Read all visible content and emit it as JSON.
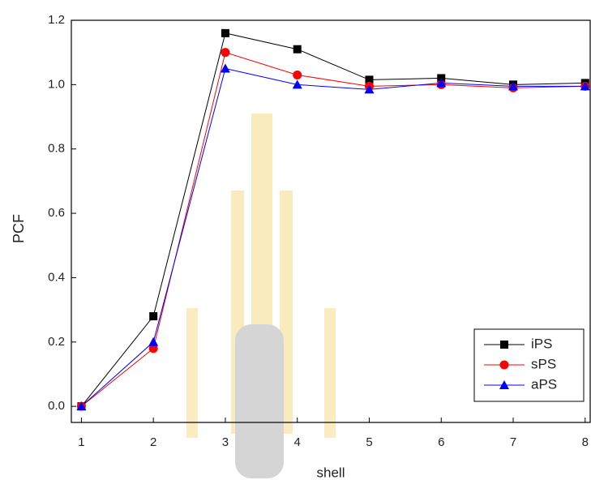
{
  "chart_data": {
    "type": "line",
    "x_label": "shell",
    "y_label": "PCF",
    "x": [
      1,
      2,
      3,
      4,
      5,
      6,
      7,
      8
    ],
    "series": [
      {
        "name": "iPS",
        "color": "#000000",
        "marker": "square",
        "values": [
          0.0,
          0.28,
          1.16,
          1.11,
          1.015,
          1.02,
          1.0,
          1.005
        ]
      },
      {
        "name": "sPS",
        "color": "#ff0000",
        "marker": "circle",
        "values": [
          0.0,
          0.18,
          1.1,
          1.03,
          0.995,
          1.0,
          0.99,
          0.995
        ]
      },
      {
        "name": "aPS",
        "color": "#0000ff",
        "marker": "triangle",
        "values": [
          0.0,
          0.2,
          1.05,
          1.0,
          0.985,
          1.005,
          0.995,
          0.995
        ]
      }
    ],
    "xlim": [
      0.86,
      8.07
    ],
    "ylim": [
      -0.05,
      1.2
    ],
    "xticks": [
      1,
      2,
      3,
      4,
      5,
      6,
      7,
      8
    ],
    "yticks": [
      {
        "value": 0,
        "label": "0.0"
      },
      {
        "value": 0.2,
        "label": "0.2"
      },
      {
        "value": 0.4,
        "label": "0.4"
      },
      {
        "value": 0.6,
        "label": "0.6"
      },
      {
        "value": 0.8,
        "label": "0.8"
      },
      {
        "value": 1.0,
        "label": "1.0"
      },
      {
        "value": 1.2,
        "label": "1.2"
      }
    ],
    "legend": "lower right",
    "grid": false
  }
}
